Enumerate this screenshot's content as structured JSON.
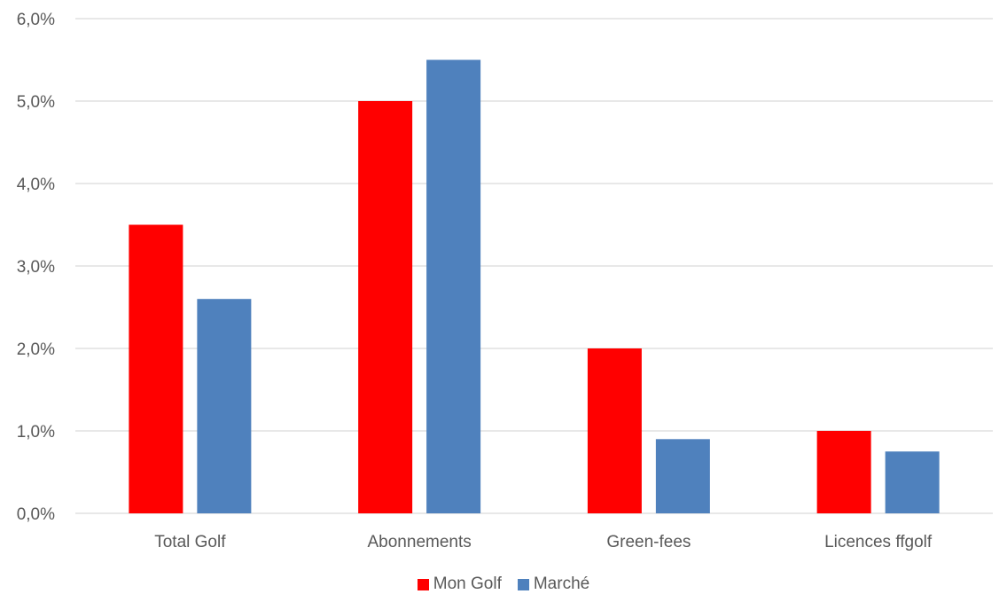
{
  "chart_data": {
    "type": "bar",
    "categories": [
      "Total Golf",
      "Abonnements",
      "Green-fees",
      "Licences ffgolf"
    ],
    "series": [
      {
        "name": "Mon Golf",
        "values": [
          3.5,
          5.0,
          2.0,
          1.0
        ],
        "color": "#ff0000"
      },
      {
        "name": "Marché",
        "values": [
          2.6,
          5.5,
          0.9,
          0.75
        ],
        "color": "#4f81bd"
      }
    ],
    "y_tick_labels": [
      "0,0%",
      "1,0%",
      "2,0%",
      "3,0%",
      "4,0%",
      "5,0%",
      "6,0%"
    ],
    "ylim": [
      0,
      6
    ],
    "grid": true,
    "legend_position": "bottom"
  }
}
